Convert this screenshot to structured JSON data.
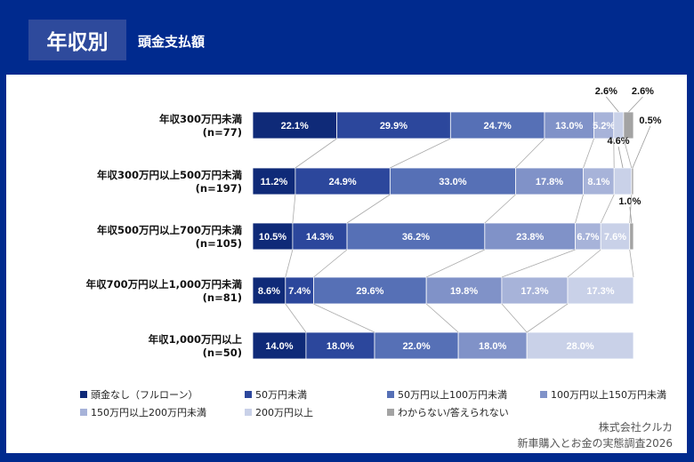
{
  "header": {
    "badge": "年収別",
    "title": "頭金支払額"
  },
  "chart_data": {
    "type": "bar",
    "orientation": "horizontal",
    "stacked": true,
    "percent": true,
    "categories": [
      "年収300万円未満\n(n=77)",
      "年収300万円以上500万円未満\n(n=197)",
      "年収500万円以上700万円未満\n(n=105)",
      "年収700万円以上1,000万円未満\n(n=81)",
      "年収1,000万円以上\n(n=50)"
    ],
    "series": [
      {
        "name": "頭金なし（フルローン）",
        "color": "#0f2a78",
        "values": [
          22.1,
          11.2,
          10.5,
          8.6,
          14.0
        ]
      },
      {
        "name": "50万円未満",
        "color": "#2c479c",
        "values": [
          29.9,
          24.9,
          14.3,
          7.4,
          18.0
        ]
      },
      {
        "name": "50万円以上100万円未満",
        "color": "#5670b6",
        "values": [
          24.7,
          33.0,
          36.2,
          29.6,
          22.0
        ]
      },
      {
        "name": "100万円以上150万円未満",
        "color": "#8092c8",
        "values": [
          13.0,
          17.8,
          23.8,
          19.8,
          18.0
        ]
      },
      {
        "name": "150万円以上200万円未満",
        "color": "#a7b3d9",
        "values": [
          5.2,
          8.1,
          6.7,
          17.3,
          0
        ]
      },
      {
        "name": "200万円以上",
        "color": "#c9d1e8",
        "values": [
          2.6,
          4.6,
          7.6,
          17.3,
          28.0
        ]
      },
      {
        "name": "わからない/答えられない",
        "color": "#a3a3a3",
        "values": [
          2.6,
          0.5,
          1.0,
          0,
          0
        ]
      }
    ],
    "xlim": [
      0,
      100
    ],
    "legend": "bottom"
  },
  "source": {
    "line1": "株式会社クルカ",
    "line2": "新車購入とお金の実態調査2026"
  }
}
